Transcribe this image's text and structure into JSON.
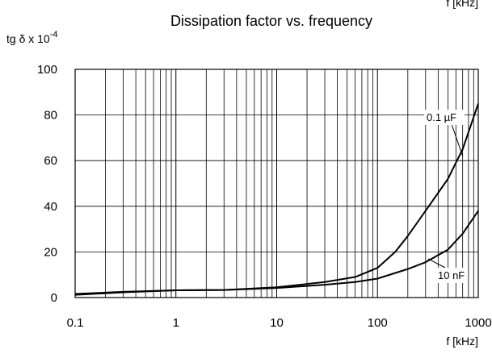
{
  "chart_data": {
    "type": "line",
    "title": "Dissipation factor vs. frequency",
    "xlabel": "f [kHz]",
    "corner_label": "f [kHz]",
    "ylabel_base": "tg δ x 10",
    "ylabel_exp": "-4",
    "x_scale": "log",
    "xlim": [
      0.1,
      1000
    ],
    "ylim": [
      0,
      100
    ],
    "grid": true,
    "x_ticks": [
      0.1,
      1,
      10,
      100,
      1000
    ],
    "x_tick_labels": [
      "0.1",
      "1",
      "10",
      "100",
      "1000"
    ],
    "y_ticks": [
      0,
      20,
      40,
      60,
      80,
      100
    ],
    "y_tick_labels": [
      "0",
      "20",
      "40",
      "60",
      "80",
      "100"
    ],
    "series": [
      {
        "name": "0.1 µF",
        "x": [
          0.1,
          0.3,
          1,
          3,
          10,
          30,
          60,
          100,
          150,
          200,
          300,
          500,
          700,
          1000
        ],
        "y": [
          1.2,
          2.3,
          3.2,
          3.3,
          4.5,
          6.8,
          9,
          13,
          20,
          27,
          38,
          52,
          65,
          85
        ]
      },
      {
        "name": "10 nF",
        "x": [
          0.1,
          0.3,
          1,
          3,
          10,
          30,
          60,
          100,
          200,
          300,
          500,
          700,
          1000
        ],
        "y": [
          1.6,
          2.5,
          3.2,
          3.3,
          4.2,
          5.6,
          6.8,
          8.3,
          12.5,
          15.5,
          21,
          28,
          38
        ]
      }
    ]
  }
}
